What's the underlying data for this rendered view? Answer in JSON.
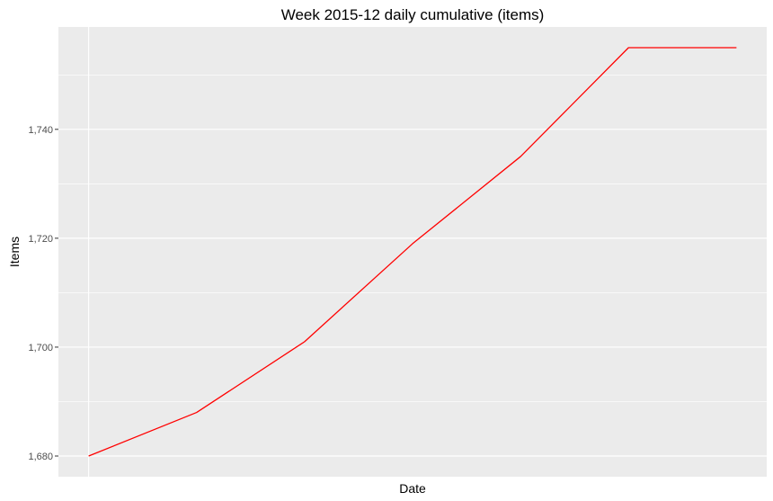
{
  "chart_data": {
    "type": "line",
    "title": "Week 2015-12 daily cumulative (items)",
    "xlabel": "Date",
    "ylabel": "Items",
    "x": [
      1,
      2,
      3,
      4,
      5,
      6,
      7
    ],
    "series": [
      {
        "values": [
          1680,
          1688,
          1701,
          1719,
          1735,
          1755,
          1755
        ]
      }
    ],
    "y_ticks": [
      1680,
      1700,
      1720,
      1740
    ],
    "y_tick_labels": [
      "1,680",
      "1,700",
      "1,720",
      "1,740"
    ],
    "ylim": [
      1676.2,
      1758.8
    ],
    "xlim": [
      0.72,
      7.28
    ],
    "grid": true,
    "line_color": "#ff0000",
    "panel_color": "#ebebeb",
    "grid_color": "#ffffff"
  }
}
